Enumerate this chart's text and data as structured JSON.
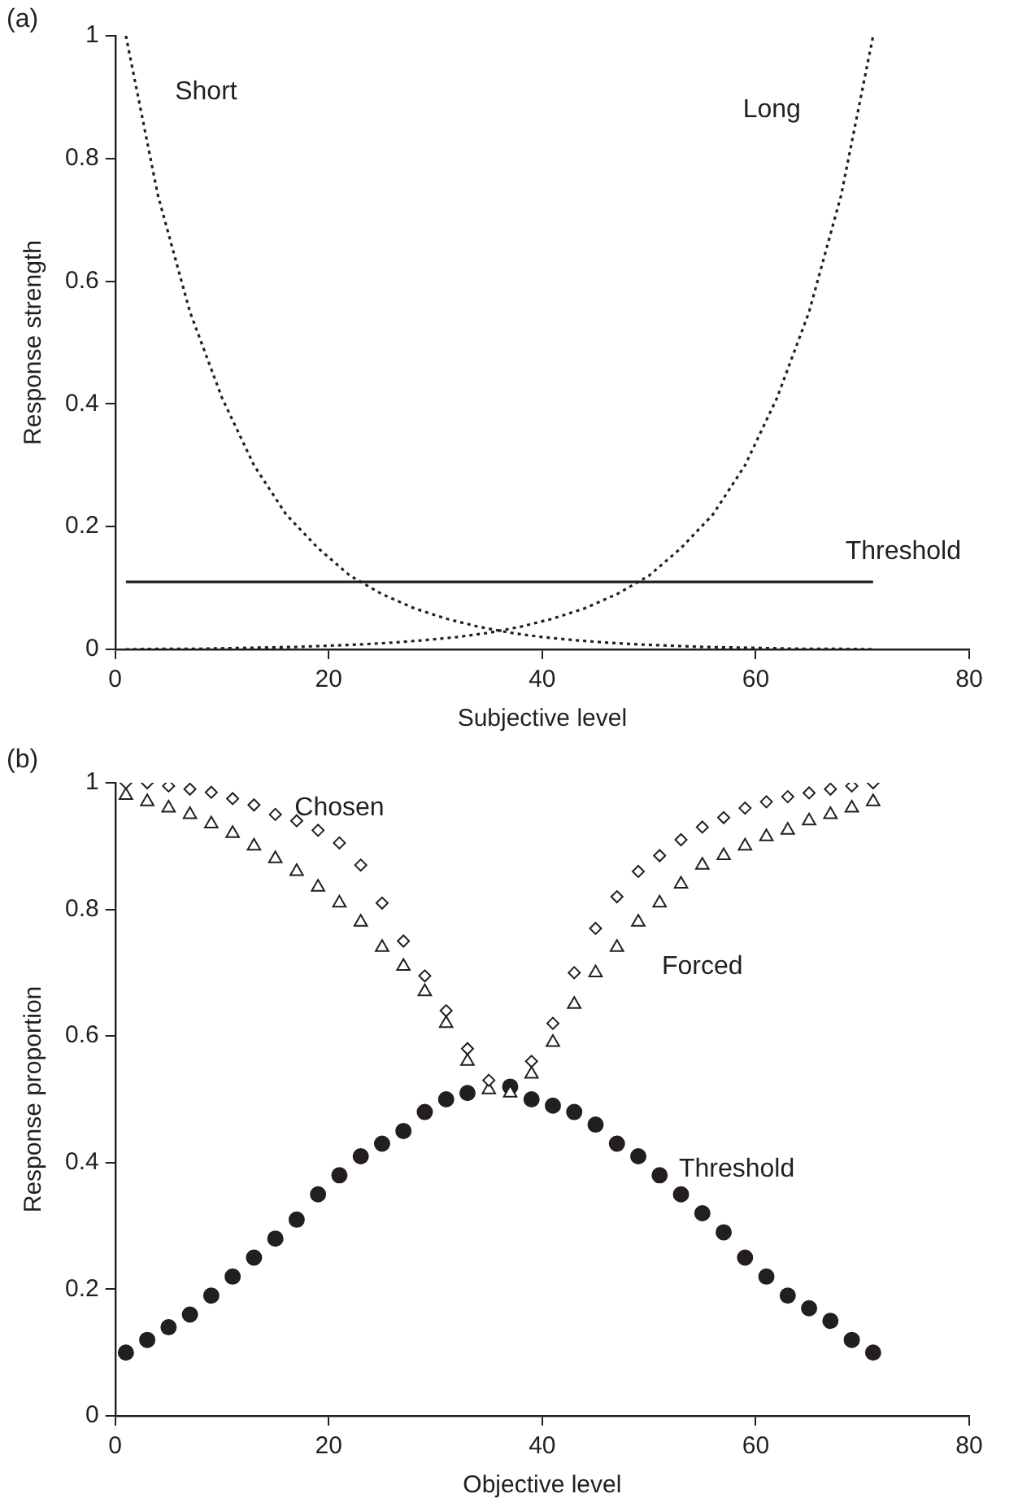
{
  "chart_data": [
    {
      "type": "line",
      "xlabel": "Subjective level",
      "ylabel": "Response strength",
      "xlim": [
        0,
        80
      ],
      "ylim": [
        0,
        1
      ],
      "xticks": [
        0,
        20,
        40,
        60,
        80
      ],
      "yticks": [
        0,
        0.2,
        0.4,
        0.6,
        0.8,
        1
      ],
      "grid": false,
      "legend": false,
      "annotations": [
        "(a)"
      ],
      "series": [
        {
          "name": "Short",
          "color": "#231f20",
          "line_style": "dotted",
          "marker": "none",
          "x": [
            1,
            4,
            7,
            10,
            13,
            16,
            19,
            22,
            25,
            28,
            31,
            34,
            37,
            40,
            43,
            46,
            49,
            52,
            55,
            58,
            61,
            64,
            67,
            71
          ],
          "values": [
            1,
            0.74,
            0.55,
            0.41,
            0.3,
            0.22,
            0.165,
            0.12,
            0.09,
            0.067,
            0.05,
            0.037,
            0.027,
            0.02,
            0.015,
            0.011,
            0.008,
            0.006,
            0.004,
            0.003,
            0.002,
            0.001,
            0.001,
            0
          ]
        },
        {
          "name": "Long",
          "color": "#231f20",
          "line_style": "dotted",
          "marker": "none",
          "x": [
            1,
            5,
            8,
            11,
            14,
            17,
            20,
            23,
            26,
            29,
            32,
            35,
            38,
            41,
            44,
            47,
            50,
            53,
            56,
            59,
            62,
            65,
            68,
            71
          ],
          "values": [
            0,
            0.001,
            0.001,
            0.002,
            0.003,
            0.004,
            0.006,
            0.008,
            0.011,
            0.015,
            0.02,
            0.027,
            0.037,
            0.05,
            0.067,
            0.09,
            0.12,
            0.165,
            0.22,
            0.3,
            0.41,
            0.55,
            0.74,
            1
          ]
        },
        {
          "name": "Threshold",
          "color": "#231f20",
          "line_style": "solid",
          "marker": "none",
          "x": [
            1,
            71
          ],
          "values": [
            0.11,
            0.11
          ]
        }
      ]
    },
    {
      "type": "scatter",
      "xlabel": "Objective level",
      "ylabel": "Response proportion",
      "xlim": [
        0,
        80
      ],
      "ylim": [
        0,
        1
      ],
      "xticks": [
        0,
        20,
        40,
        60,
        80
      ],
      "yticks": [
        0,
        0.2,
        0.4,
        0.6,
        0.8,
        1
      ],
      "grid": false,
      "legend": false,
      "annotations": [
        "(b)"
      ],
      "x": [
        1,
        3,
        5,
        7,
        9,
        11,
        13,
        15,
        17,
        19,
        21,
        23,
        25,
        27,
        29,
        31,
        33,
        35,
        37,
        39,
        41,
        43,
        45,
        47,
        49,
        51,
        53,
        55,
        57,
        59,
        61,
        63,
        65,
        67,
        69,
        71
      ],
      "series": [
        {
          "name": "Chosen",
          "color": "#231f20",
          "marker": "diamond",
          "values": [
            1,
            1,
            0.995,
            0.99,
            0.985,
            0.975,
            0.965,
            0.95,
            0.94,
            0.925,
            0.905,
            0.87,
            0.81,
            0.75,
            0.695,
            0.64,
            0.58,
            0.53,
            null,
            0.56,
            0.62,
            0.7,
            0.77,
            0.82,
            0.86,
            0.885,
            0.91,
            0.93,
            0.945,
            0.96,
            0.97,
            0.978,
            0.984,
            0.99,
            0.995,
            1
          ]
        },
        {
          "name": "Forced",
          "color": "#231f20",
          "marker": "triangle",
          "values": [
            0.98,
            0.97,
            0.96,
            0.95,
            0.935,
            0.92,
            0.9,
            0.88,
            0.86,
            0.835,
            0.81,
            0.78,
            0.74,
            0.71,
            0.67,
            0.62,
            0.56,
            0.515,
            0.51,
            0.54,
            0.59,
            0.65,
            0.7,
            0.74,
            0.78,
            0.81,
            0.84,
            0.87,
            0.885,
            0.9,
            0.915,
            0.925,
            0.94,
            0.95,
            0.96,
            0.97
          ]
        },
        {
          "name": "Threshold",
          "color": "#231f20",
          "marker": "circle",
          "values": [
            0.1,
            0.12,
            0.14,
            0.16,
            0.19,
            0.22,
            0.25,
            0.28,
            0.31,
            0.35,
            0.38,
            0.41,
            0.43,
            0.45,
            0.48,
            0.5,
            0.51,
            null,
            0.52,
            0.5,
            0.49,
            0.48,
            0.46,
            0.43,
            0.41,
            0.38,
            0.35,
            0.32,
            0.29,
            0.25,
            0.22,
            0.19,
            0.17,
            0.15,
            0.12,
            0.1
          ]
        }
      ]
    }
  ]
}
